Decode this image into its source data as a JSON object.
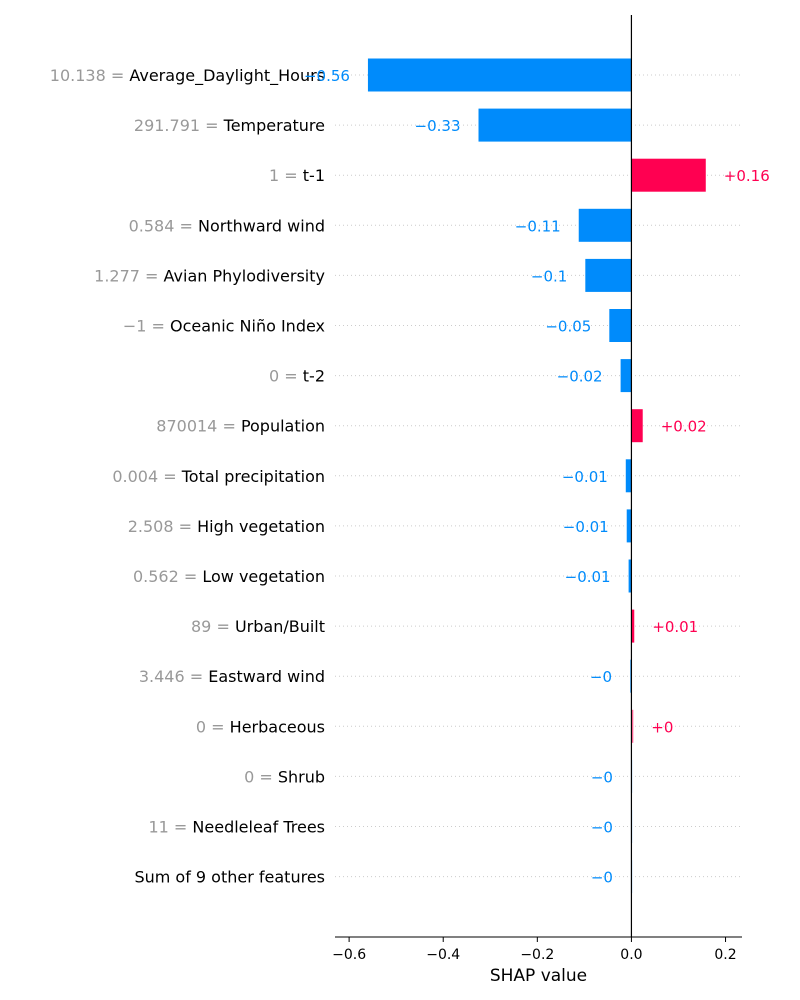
{
  "chart_data": {
    "type": "bar",
    "xlabel": "SHAP value",
    "xlim": [
      -0.63,
      0.235
    ],
    "xticks": [
      {
        "value": -0.6,
        "label": "−0.6"
      },
      {
        "value": -0.4,
        "label": "−0.4"
      },
      {
        "value": -0.2,
        "label": "−0.2"
      },
      {
        "value": 0.0,
        "label": "0.0"
      },
      {
        "value": 0.2,
        "label": "0.2"
      }
    ],
    "colors": {
      "negative": "#008bfb",
      "positive": "#ff0051",
      "zero_line": "#000000",
      "grid": "#cccccc"
    },
    "features": [
      {
        "value_text": "10.138",
        "name": "Average_Daylight_Hours",
        "shap": -0.56,
        "label": "−0.56"
      },
      {
        "value_text": "291.791",
        "name": "Temperature",
        "shap": -0.325,
        "label": "−0.33"
      },
      {
        "value_text": "1",
        "name": "t-1",
        "shap": 0.158,
        "label": "+0.16"
      },
      {
        "value_text": "0.584",
        "name": "Northward wind",
        "shap": -0.112,
        "label": "−0.11"
      },
      {
        "value_text": "1.277",
        "name": "Avian Phylodiversity",
        "shap": -0.098,
        "label": "−0.1"
      },
      {
        "value_text": "−1",
        "name": "Oceanic Niño Index",
        "shap": -0.047,
        "label": "−0.05"
      },
      {
        "value_text": "0",
        "name": "t-2",
        "shap": -0.023,
        "label": "−0.02"
      },
      {
        "value_text": "870014",
        "name": "Population",
        "shap": 0.024,
        "label": "+0.02"
      },
      {
        "value_text": "0.004",
        "name": "Total precipitation",
        "shap": -0.012,
        "label": "−0.01"
      },
      {
        "value_text": "2.508",
        "name": "High vegetation",
        "shap": -0.01,
        "label": "−0.01"
      },
      {
        "value_text": "0.562",
        "name": "Low vegetation",
        "shap": -0.006,
        "label": "−0.01"
      },
      {
        "value_text": "89",
        "name": "Urban/Built",
        "shap": 0.006,
        "label": "+0.01"
      },
      {
        "value_text": "3.446",
        "name": "Eastward wind",
        "shap": -0.003,
        "label": "−0"
      },
      {
        "value_text": "0",
        "name": "Herbaceous",
        "shap": 0.004,
        "label": "+0"
      },
      {
        "value_text": "0",
        "name": "Shrub",
        "shap": -0.001,
        "label": "−0"
      },
      {
        "value_text": "11",
        "name": "Needleleaf Trees",
        "shap": -0.001,
        "label": "−0"
      },
      {
        "value_text": "",
        "name": "Sum of 9 other features",
        "shap": -0.001,
        "label": "−0"
      }
    ]
  }
}
